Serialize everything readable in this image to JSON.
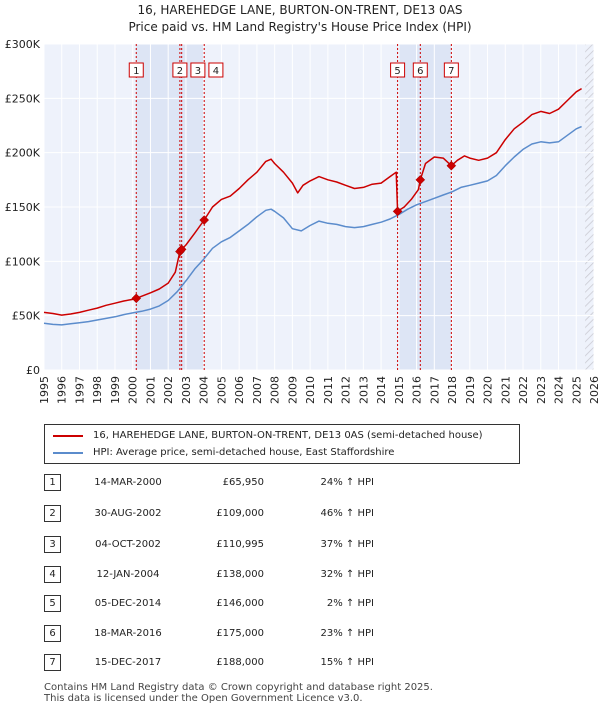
{
  "chart_data": {
    "type": "line",
    "title": "16, HAREHEDGE LANE, BURTON-ON-TRENT, DE13 0AS",
    "subtitle": "Price paid vs. HM Land Registry's House Price Index (HPI)",
    "xlim": [
      1995,
      2026
    ],
    "ylim": [
      0,
      300000
    ],
    "x_ticks": [
      "1995",
      "1996",
      "1997",
      "1998",
      "1999",
      "2000",
      "2001",
      "2002",
      "2003",
      "2004",
      "2005",
      "2006",
      "2007",
      "2008",
      "2009",
      "2010",
      "2011",
      "2012",
      "2013",
      "2014",
      "2015",
      "2016",
      "2017",
      "2018",
      "2019",
      "2020",
      "2021",
      "2022",
      "2023",
      "2024",
      "2025",
      "2026"
    ],
    "y_ticks": [
      {
        "value": 0,
        "label": "£0"
      },
      {
        "value": 50000,
        "label": "£50K"
      },
      {
        "value": 100000,
        "label": "£100K"
      },
      {
        "value": 150000,
        "label": "£150K"
      },
      {
        "value": 200000,
        "label": "£200K"
      },
      {
        "value": 250000,
        "label": "£250K"
      },
      {
        "value": 300000,
        "label": "£300K"
      }
    ],
    "grid": true,
    "shaded_periods": [
      [
        2000.2,
        2004.03
      ],
      [
        2014.93,
        2017.96
      ]
    ],
    "future_hatch_from": 2025.5,
    "series": [
      {
        "name": "16, HAREHEDGE LANE, BURTON-ON-TRENT, DE13 0AS (semi-detached house)",
        "color": "#cc0000",
        "points": [
          [
            1995,
            53000
          ],
          [
            1995.5,
            52000
          ],
          [
            1996,
            50500
          ],
          [
            1996.5,
            51500
          ],
          [
            1997,
            53000
          ],
          [
            1997.5,
            55000
          ],
          [
            1998,
            57000
          ],
          [
            1998.5,
            59500
          ],
          [
            1999,
            61500
          ],
          [
            1999.5,
            63500
          ],
          [
            2000,
            65000
          ],
          [
            2000.2,
            65950
          ],
          [
            2000.6,
            68500
          ],
          [
            2001,
            71000
          ],
          [
            2001.5,
            74500
          ],
          [
            2002,
            80000
          ],
          [
            2002.4,
            90000
          ],
          [
            2002.66,
            109000
          ],
          [
            2002.76,
            110995
          ],
          [
            2003,
            115000
          ],
          [
            2003.5,
            126000
          ],
          [
            2004.03,
            138000
          ],
          [
            2004.5,
            150000
          ],
          [
            2005,
            157000
          ],
          [
            2005.5,
            160000
          ],
          [
            2006,
            167000
          ],
          [
            2006.5,
            175000
          ],
          [
            2007,
            182000
          ],
          [
            2007.5,
            192000
          ],
          [
            2007.8,
            194000
          ],
          [
            2008,
            190000
          ],
          [
            2008.5,
            182000
          ],
          [
            2009,
            172000
          ],
          [
            2009.3,
            163000
          ],
          [
            2009.6,
            170000
          ],
          [
            2010,
            174000
          ],
          [
            2010.5,
            178000
          ],
          [
            2011,
            175000
          ],
          [
            2011.5,
            173000
          ],
          [
            2012,
            170000
          ],
          [
            2012.5,
            167000
          ],
          [
            2013,
            168000
          ],
          [
            2013.5,
            171000
          ],
          [
            2014,
            172000
          ],
          [
            2014.5,
            178000
          ],
          [
            2014.85,
            182000
          ],
          [
            2014.93,
            146000
          ],
          [
            2015.3,
            150000
          ],
          [
            2015.7,
            157000
          ],
          [
            2016.1,
            166000
          ],
          [
            2016.21,
            175000
          ],
          [
            2016.5,
            190000
          ],
          [
            2017,
            196000
          ],
          [
            2017.5,
            195000
          ],
          [
            2017.96,
            188000
          ],
          [
            2018.3,
            193000
          ],
          [
            2018.7,
            197000
          ],
          [
            2019,
            195000
          ],
          [
            2019.5,
            193000
          ],
          [
            2020,
            195000
          ],
          [
            2020.5,
            200000
          ],
          [
            2021,
            212000
          ],
          [
            2021.5,
            222000
          ],
          [
            2022,
            228000
          ],
          [
            2022.5,
            235000
          ],
          [
            2023,
            238000
          ],
          [
            2023.5,
            236000
          ],
          [
            2024,
            240000
          ],
          [
            2024.5,
            248000
          ],
          [
            2025,
            256000
          ],
          [
            2025.3,
            259000
          ]
        ]
      },
      {
        "name": "HPI: Average price, semi-detached house, East Staffordshire",
        "color": "#5b8ccc",
        "points": [
          [
            1995,
            43000
          ],
          [
            1995.5,
            42000
          ],
          [
            1996,
            41500
          ],
          [
            1996.5,
            42500
          ],
          [
            1997,
            43500
          ],
          [
            1997.5,
            44500
          ],
          [
            1998,
            46000
          ],
          [
            1998.5,
            47500
          ],
          [
            1999,
            49000
          ],
          [
            1999.5,
            51000
          ],
          [
            2000,
            52500
          ],
          [
            2000.5,
            54000
          ],
          [
            2001,
            56000
          ],
          [
            2001.5,
            59000
          ],
          [
            2002,
            64000
          ],
          [
            2002.5,
            72000
          ],
          [
            2003,
            82000
          ],
          [
            2003.5,
            93000
          ],
          [
            2004,
            102000
          ],
          [
            2004.5,
            112000
          ],
          [
            2005,
            118000
          ],
          [
            2005.5,
            122000
          ],
          [
            2006,
            128000
          ],
          [
            2006.5,
            134000
          ],
          [
            2007,
            141000
          ],
          [
            2007.5,
            147000
          ],
          [
            2007.8,
            148000
          ],
          [
            2008,
            146000
          ],
          [
            2008.5,
            140000
          ],
          [
            2009,
            130000
          ],
          [
            2009.5,
            128000
          ],
          [
            2010,
            133000
          ],
          [
            2010.5,
            137000
          ],
          [
            2011,
            135000
          ],
          [
            2011.5,
            134000
          ],
          [
            2012,
            132000
          ],
          [
            2012.5,
            131000
          ],
          [
            2013,
            132000
          ],
          [
            2013.5,
            134000
          ],
          [
            2014,
            136000
          ],
          [
            2014.5,
            139000
          ],
          [
            2015,
            143000
          ],
          [
            2015.5,
            148000
          ],
          [
            2016,
            152000
          ],
          [
            2016.5,
            155000
          ],
          [
            2017,
            158000
          ],
          [
            2017.5,
            161000
          ],
          [
            2018,
            164000
          ],
          [
            2018.5,
            168000
          ],
          [
            2019,
            170000
          ],
          [
            2019.5,
            172000
          ],
          [
            2020,
            174000
          ],
          [
            2020.5,
            179000
          ],
          [
            2021,
            188000
          ],
          [
            2021.5,
            196000
          ],
          [
            2022,
            203000
          ],
          [
            2022.5,
            208000
          ],
          [
            2023,
            210000
          ],
          [
            2023.5,
            209000
          ],
          [
            2024,
            210000
          ],
          [
            2024.5,
            216000
          ],
          [
            2025,
            222000
          ],
          [
            2025.3,
            224000
          ]
        ]
      }
    ],
    "sales": [
      {
        "id": "1",
        "x": 2000.2,
        "y": 65950,
        "date": "14-MAR-2000",
        "price": "£65,950",
        "hpi": "24% ↑ HPI"
      },
      {
        "id": "2",
        "x": 2002.66,
        "y": 109000,
        "date": "30-AUG-2002",
        "price": "£109,000",
        "hpi": "46% ↑ HPI"
      },
      {
        "id": "3",
        "x": 2002.76,
        "y": 110995,
        "date": "04-OCT-2002",
        "price": "£110,995",
        "hpi": "37% ↑ HPI"
      },
      {
        "id": "4",
        "x": 2004.03,
        "y": 138000,
        "date": "12-JAN-2004",
        "price": "£138,000",
        "hpi": "32% ↑ HPI"
      },
      {
        "id": "5",
        "x": 2014.93,
        "y": 146000,
        "date": "05-DEC-2014",
        "price": "£146,000",
        "hpi": "2% ↑ HPI"
      },
      {
        "id": "6",
        "x": 2016.21,
        "y": 175000,
        "date": "18-MAR-2016",
        "price": "£175,000",
        "hpi": "23% ↑ HPI"
      },
      {
        "id": "7",
        "x": 2017.96,
        "y": 188000,
        "date": "15-DEC-2017",
        "price": "£188,000",
        "hpi": "15% ↑ HPI"
      }
    ]
  },
  "legend": {
    "property_label": "16, HAREHEDGE LANE, BURTON-ON-TRENT, DE13 0AS (semi-detached house)",
    "hpi_label": "HPI: Average price, semi-detached house, East Staffordshire"
  },
  "footer": {
    "line1": "Contains HM Land Registry data © Crown copyright and database right 2025.",
    "line2": "This data is licensed under the Open Government Licence v3.0."
  }
}
